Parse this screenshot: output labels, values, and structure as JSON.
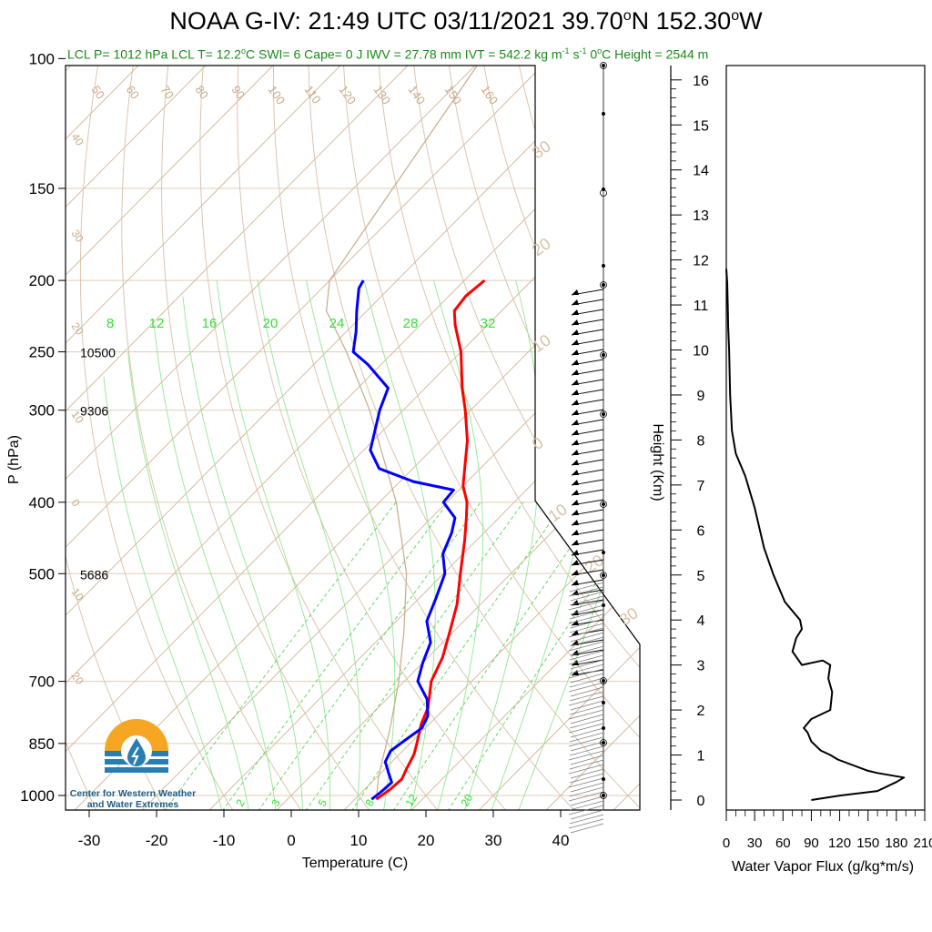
{
  "header": {
    "title_main": "NOAA G-IV: 21:49 UTC 03/11/2021  39.70",
    "title_lat_suffix": "N 152.30",
    "title_lon_suffix": "W",
    "degree_symbol": "o",
    "subtitle_part1": "LCL P= 1012 hPa  LCL T= 12.2",
    "subtitle_part2": "C  SWI= 6  Cape= 0 J  IWV = 27.78 mm  IVT = 542.2 kg m",
    "subtitle_m1": "-1",
    "subtitle_s": " s",
    "subtitle_part3": "  0",
    "subtitle_part4": "C Height = 2544 m"
  },
  "skewt": {
    "ylabel": "P (hPa)",
    "xlabel": "Temperature (C)",
    "pressure_ticks": [
      100,
      150,
      200,
      250,
      300,
      400,
      500,
      700,
      850,
      1000
    ],
    "temp_ticks": [
      -30,
      -20,
      -10,
      0,
      10,
      20,
      30,
      40
    ],
    "height_annotations": [
      {
        "p": 250,
        "label": "10500"
      },
      {
        "p": 300,
        "label": "9306"
      },
      {
        "p": 500,
        "label": "5686"
      }
    ],
    "dry_adiabat_labels": [
      "50",
      "60",
      "70",
      "80",
      "90",
      "100",
      "110",
      "120",
      "130",
      "140",
      "150",
      "160"
    ],
    "left_isotherm_labels": [
      "40",
      "30",
      "20",
      "10",
      "0",
      "10",
      "20"
    ],
    "right_isotherm_labels": [
      "30",
      "20",
      "10",
      "0",
      "10",
      "20",
      "30"
    ],
    "moist_adiabat_labels": [
      "8",
      "12",
      "16",
      "20",
      "24",
      "28",
      "32"
    ],
    "mixing_ratio_labels": [
      "2",
      "3",
      "5",
      "8",
      "12",
      "20"
    ]
  },
  "height_panel": {
    "ylabel": "Height (Km)",
    "xlabel": "Water Vapor Flux (g/kg*m/s)",
    "height_ticks": [
      "0",
      "1",
      "2",
      "3",
      "4",
      "5",
      "6",
      "7",
      "8",
      "9",
      "10",
      "11",
      "12",
      "13",
      "14",
      "15",
      "16"
    ],
    "flux_ticks": [
      "0",
      "30",
      "60",
      "90",
      "120",
      "150",
      "180",
      "210"
    ]
  },
  "logo": {
    "line1": "Center for Western Weather",
    "line2": "and Water Extremes"
  },
  "chart_data": [
    {
      "type": "line",
      "title": "NOAA G-IV: 21:49 UTC 03/11/2021 39.70°N 152.30°W",
      "xlabel": "Temperature (C)",
      "ylabel": "P (hPa)",
      "xlim": [
        -33,
        52
      ],
      "ylim": [
        1050,
        100
      ],
      "y_scale": "log",
      "series": [
        {
          "color": "#ff0000",
          "points": [
            {
              "p": 1012,
              "t": 13.2
            },
            {
              "p": 980,
              "t": 13.8
            },
            {
              "p": 950,
              "t": 14.0
            },
            {
              "p": 920,
              "t": 13.2
            },
            {
              "p": 880,
              "t": 12.2
            },
            {
              "p": 850,
              "t": 11.0
            },
            {
              "p": 800,
              "t": 8.8
            },
            {
              "p": 760,
              "t": 7.4
            },
            {
              "p": 700,
              "t": 4.0
            },
            {
              "p": 650,
              "t": 2.2
            },
            {
              "p": 600,
              "t": -0.5
            },
            {
              "p": 550,
              "t": -3.5
            },
            {
              "p": 500,
              "t": -7.5
            },
            {
              "p": 450,
              "t": -11.8
            },
            {
              "p": 420,
              "t": -14.8
            },
            {
              "p": 400,
              "t": -17.0
            },
            {
              "p": 380,
              "t": -20.0
            },
            {
              "p": 350,
              "t": -23.5
            },
            {
              "p": 330,
              "t": -26.0
            },
            {
              "p": 300,
              "t": -30.8
            },
            {
              "p": 280,
              "t": -34.5
            },
            {
              "p": 250,
              "t": -40.0
            },
            {
              "p": 230,
              "t": -44.8
            },
            {
              "p": 220,
              "t": -47.0
            },
            {
              "p": 210,
              "t": -47.5
            },
            {
              "p": 200,
              "t": -47.0
            }
          ]
        },
        {
          "color": "#0000ff",
          "points": [
            {
              "p": 1012,
              "t": 12.5
            },
            {
              "p": 990,
              "t": 12.8
            },
            {
              "p": 960,
              "t": 13.0
            },
            {
              "p": 930,
              "t": 11.0
            },
            {
              "p": 900,
              "t": 9.0
            },
            {
              "p": 870,
              "t": 8.2
            },
            {
              "p": 840,
              "t": 8.8
            },
            {
              "p": 810,
              "t": 9.5
            },
            {
              "p": 780,
              "t": 8.6
            },
            {
              "p": 740,
              "t": 6.0
            },
            {
              "p": 700,
              "t": 2.0
            },
            {
              "p": 660,
              "t": 0.0
            },
            {
              "p": 620,
              "t": -1.8
            },
            {
              "p": 580,
              "t": -5.5
            },
            {
              "p": 540,
              "t": -7.5
            },
            {
              "p": 500,
              "t": -9.8
            },
            {
              "p": 470,
              "t": -13.0
            },
            {
              "p": 440,
              "t": -14.8
            },
            {
              "p": 420,
              "t": -16.5
            },
            {
              "p": 400,
              "t": -20.5
            },
            {
              "p": 385,
              "t": -20.8
            },
            {
              "p": 375,
              "t": -28.0
            },
            {
              "p": 360,
              "t": -35.0
            },
            {
              "p": 340,
              "t": -39.0
            },
            {
              "p": 300,
              "t": -43.5
            },
            {
              "p": 280,
              "t": -45.5
            },
            {
              "p": 260,
              "t": -52.0
            },
            {
              "p": 250,
              "t": -56.0
            },
            {
              "p": 235,
              "t": -58.5
            },
            {
              "p": 220,
              "t": -61.5
            },
            {
              "p": 205,
              "t": -64.5
            },
            {
              "p": 200,
              "t": -65.0
            }
          ]
        },
        {
          "color": "#c8a98a",
          "points": [
            {
              "p": 1012,
              "t": 13.2
            },
            {
              "p": 950,
              "t": 10.5
            },
            {
              "p": 900,
              "t": 8.5
            },
            {
              "p": 850,
              "t": 6.5
            },
            {
              "p": 800,
              "t": 4.3
            },
            {
              "p": 700,
              "t": -0.8
            },
            {
              "p": 600,
              "t": -7.3
            },
            {
              "p": 500,
              "t": -15.5
            },
            {
              "p": 400,
              "t": -27.5
            },
            {
              "p": 300,
              "t": -45.0
            },
            {
              "p": 250,
              "t": -57.0
            },
            {
              "p": 220,
              "t": -66.0
            },
            {
              "p": 200,
              "t": -70.0
            },
            {
              "p": 100,
              "t": -80.0
            }
          ]
        }
      ]
    },
    {
      "type": "line",
      "title": "",
      "xlabel": "Water Vapor Flux (g/kg*m/s)",
      "ylabel": "Height (Km)",
      "xlim": [
        0,
        210
      ],
      "ylim": [
        -0.2,
        16.4
      ],
      "series": [
        {
          "color": "#000000",
          "x": [
            90,
            120,
            160,
            180,
            188,
            160,
            150,
            118,
            110,
            100,
            90,
            86,
            82,
            90,
            110,
            112,
            108,
            110,
            102,
            80,
            70,
            74,
            80,
            78,
            62,
            50,
            40,
            30,
            20,
            10,
            6,
            4,
            3,
            2,
            1.5,
            1,
            0
          ],
          "y": [
            0.0,
            0.1,
            0.2,
            0.4,
            0.5,
            0.6,
            0.65,
            0.9,
            1.0,
            1.1,
            1.3,
            1.5,
            1.6,
            1.8,
            2.0,
            2.4,
            2.7,
            3.0,
            3.1,
            3.0,
            3.3,
            3.6,
            3.8,
            4.0,
            4.4,
            5.0,
            5.6,
            6.5,
            7.2,
            7.7,
            8.2,
            9.0,
            10.0,
            10.5,
            11.0,
            11.5,
            11.8
          ]
        }
      ]
    }
  ]
}
